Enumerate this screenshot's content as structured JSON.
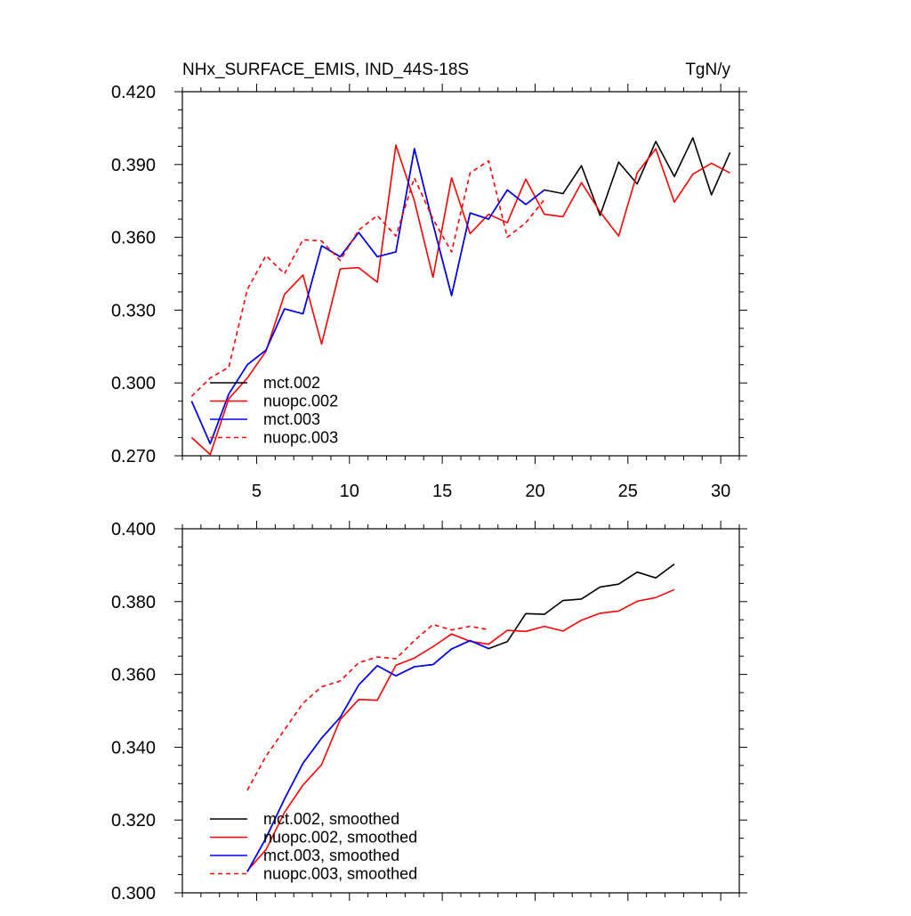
{
  "chart_data": [
    {
      "type": "line",
      "title": "NHx_SURFACE_EMIS, IND_44S-18S",
      "units": "TgN/y",
      "xlim": [
        1,
        31
      ],
      "ylim": [
        0.27,
        0.42
      ],
      "xticks": [
        5,
        10,
        15,
        20,
        25,
        30
      ],
      "yticks": [
        0.27,
        0.3,
        0.33,
        0.36,
        0.39,
        0.42
      ],
      "xtick_labels": [
        "5",
        "10",
        "15",
        "20",
        "25",
        "30"
      ],
      "ytick_labels": [
        "0.270",
        "0.300",
        "0.330",
        "0.360",
        "0.390",
        "0.420"
      ],
      "legend_position": "bottom-left",
      "series": [
        {
          "name": "mct.002",
          "color": "#000000",
          "style": "solid",
          "x": [
            1.5,
            2.5,
            3.5,
            4.5,
            5.5,
            6.5,
            7.5,
            8.5,
            9.5,
            10.5,
            11.5,
            12.5,
            13.5,
            14.5,
            15.5,
            16.5,
            17.5,
            18.5,
            19.5,
            20.5,
            21.5,
            22.5,
            23.5,
            24.5,
            25.5,
            26.5,
            27.5,
            28.5,
            29.5,
            30.5
          ],
          "y": [
            0.2925,
            0.275,
            0.2955,
            0.3075,
            0.3135,
            0.3305,
            0.3285,
            0.3565,
            0.352,
            0.362,
            0.352,
            0.354,
            0.3965,
            0.3655,
            0.336,
            0.37,
            0.3675,
            0.3795,
            0.3735,
            0.3795,
            0.378,
            0.3895,
            0.369,
            0.391,
            0.382,
            0.3995,
            0.385,
            0.401,
            0.3775,
            0.395
          ]
        },
        {
          "name": "nuopc.002",
          "color": "#ff0000",
          "style": "solid",
          "x": [
            1.5,
            2.5,
            3.5,
            4.5,
            5.5,
            6.5,
            7.5,
            8.5,
            9.5,
            10.5,
            11.5,
            12.5,
            13.5,
            14.5,
            15.5,
            16.5,
            17.5,
            18.5,
            19.5,
            20.5,
            21.5,
            22.5,
            23.5,
            24.5,
            25.5,
            26.5,
            27.5,
            28.5,
            29.5,
            30.5
          ],
          "y": [
            0.2775,
            0.2705,
            0.2935,
            0.302,
            0.313,
            0.3365,
            0.3445,
            0.316,
            0.347,
            0.3475,
            0.3415,
            0.398,
            0.375,
            0.3435,
            0.3845,
            0.3615,
            0.3695,
            0.366,
            0.384,
            0.3695,
            0.3685,
            0.3825,
            0.3705,
            0.3605,
            0.3865,
            0.3965,
            0.3745,
            0.386,
            0.3905,
            0.3865
          ]
        },
        {
          "name": "mct.003",
          "color": "#0000ff",
          "style": "solid",
          "x": [
            1.5,
            2.5,
            3.5,
            4.5,
            5.5,
            6.5,
            7.5,
            8.5,
            9.5,
            10.5,
            11.5,
            12.5,
            13.5,
            14.5,
            15.5,
            16.5,
            17.5,
            18.5,
            19.5,
            20.5
          ],
          "y": [
            0.2925,
            0.275,
            0.2955,
            0.3075,
            0.3135,
            0.3305,
            0.3285,
            0.3565,
            0.352,
            0.362,
            0.352,
            0.354,
            0.3965,
            0.3655,
            0.336,
            0.37,
            0.3675,
            0.3795,
            0.3735,
            0.3795
          ]
        },
        {
          "name": "nuopc.003",
          "color": "#ff0000",
          "style": "dashed",
          "x": [
            1.5,
            2.5,
            3.5,
            4.5,
            5.5,
            6.5,
            7.5,
            8.5,
            9.5,
            10.5,
            11.5,
            12.5,
            13.5,
            14.5,
            15.5,
            16.5,
            17.5,
            18.5,
            19.5,
            20.5
          ],
          "y": [
            0.2945,
            0.302,
            0.3065,
            0.3385,
            0.3525,
            0.345,
            0.359,
            0.3585,
            0.3505,
            0.363,
            0.369,
            0.3605,
            0.3845,
            0.3675,
            0.354,
            0.3865,
            0.3915,
            0.36,
            0.366,
            0.3755
          ]
        }
      ]
    },
    {
      "type": "line",
      "xlim": [
        1,
        31
      ],
      "ylim": [
        0.3,
        0.4
      ],
      "xticks": [
        5,
        10,
        15,
        20,
        25,
        30
      ],
      "yticks": [
        0.3,
        0.32,
        0.34,
        0.36,
        0.38,
        0.4
      ],
      "ytick_labels": [
        "0.300",
        "0.320",
        "0.340",
        "0.360",
        "0.380",
        "0.400"
      ],
      "legend_position": "bottom-left",
      "series": [
        {
          "name": "mct.002, smoothed",
          "color": "#000000",
          "style": "solid",
          "x": [
            4.5,
            5.5,
            6.5,
            7.5,
            8.5,
            9.5,
            10.5,
            11.5,
            12.5,
            13.5,
            14.5,
            15.5,
            16.5,
            17.5,
            18.5,
            19.5,
            20.5,
            21.5,
            22.5,
            23.5,
            24.5,
            25.5,
            26.5,
            27.5
          ],
          "y": [
            0.3058,
            0.315,
            0.3258,
            0.3356,
            0.3425,
            0.3482,
            0.3571,
            0.3624,
            0.3596,
            0.3621,
            0.3627,
            0.367,
            0.3693,
            0.3671,
            0.369,
            0.3767,
            0.3765,
            0.3803,
            0.3807,
            0.384,
            0.3848,
            0.3881,
            0.3865,
            0.3903
          ]
        },
        {
          "name": "nuopc.002, smoothed",
          "color": "#ff0000",
          "style": "solid",
          "x": [
            4.5,
            5.5,
            6.5,
            7.5,
            8.5,
            9.5,
            10.5,
            11.5,
            12.5,
            13.5,
            14.5,
            15.5,
            16.5,
            17.5,
            18.5,
            19.5,
            20.5,
            21.5,
            22.5,
            23.5,
            24.5,
            25.5,
            26.5,
            27.5
          ],
          "y": [
            0.3061,
            0.3118,
            0.3221,
            0.3296,
            0.3352,
            0.3476,
            0.3531,
            0.3529,
            0.3625,
            0.3645,
            0.3676,
            0.3711,
            0.3691,
            0.3683,
            0.3721,
            0.3718,
            0.3732,
            0.3719,
            0.3749,
            0.3768,
            0.3774,
            0.3801,
            0.3811,
            0.3833
          ]
        },
        {
          "name": "mct.003, smoothed",
          "color": "#0000ff",
          "style": "solid",
          "x": [
            4.5,
            5.5,
            6.5,
            7.5,
            8.5,
            9.5,
            10.5,
            11.5,
            12.5,
            13.5,
            14.5,
            15.5,
            16.5,
            17.5
          ],
          "y": [
            0.3058,
            0.315,
            0.3258,
            0.3356,
            0.3425,
            0.3482,
            0.3571,
            0.3624,
            0.3596,
            0.3621,
            0.3627,
            0.367,
            0.3693,
            0.3671
          ]
        },
        {
          "name": "nuopc.003, smoothed",
          "color": "#ff0000",
          "style": "dashed",
          "x": [
            4.5,
            5.5,
            6.5,
            7.5,
            8.5,
            9.5,
            10.5,
            11.5,
            12.5,
            13.5,
            14.5,
            15.5,
            16.5,
            17.5
          ],
          "y": [
            0.3282,
            0.3375,
            0.3448,
            0.3521,
            0.3566,
            0.3582,
            0.3632,
            0.3648,
            0.3643,
            0.3693,
            0.3737,
            0.3722,
            0.3732,
            0.3723
          ]
        }
      ]
    }
  ]
}
